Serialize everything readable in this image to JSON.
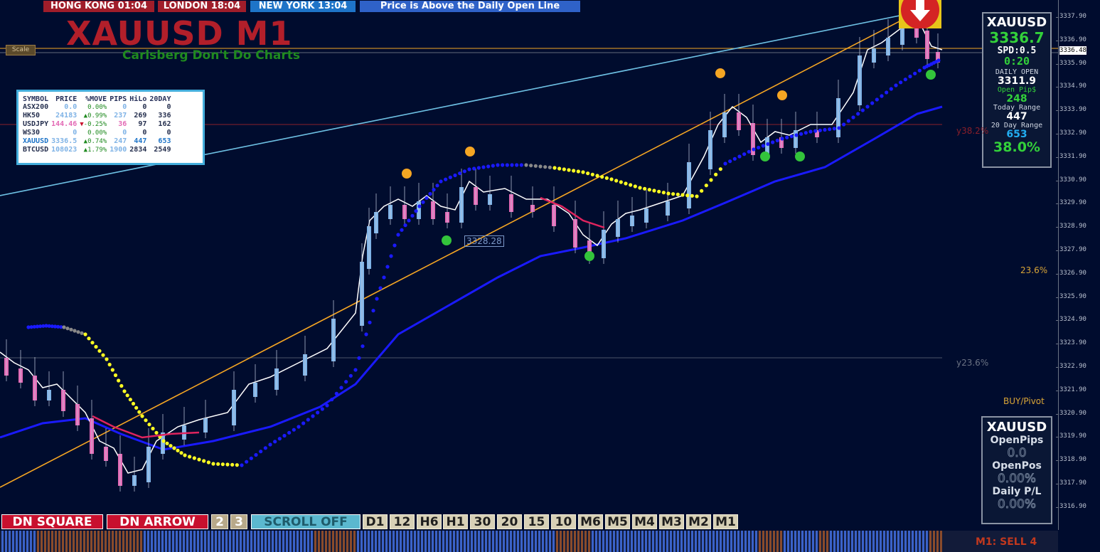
{
  "sessions": [
    {
      "label": "HONG KONG 01:04",
      "color": "#a01d2a"
    },
    {
      "label": "LONDON  18:04",
      "color": "#a01d2a"
    },
    {
      "label": "NEW YORK  13:04",
      "color": "#1e74c8"
    }
  ],
  "status_banner": "Price is Above the Daily Open Line",
  "chart_title": "XAUUSD M1",
  "chart_subtitle": "Carlsberg Don't Do Charts",
  "scale_button": "Scale",
  "price_axis": {
    "labels": [
      "3337.90",
      "3336.90",
      "3335.90",
      "3334.90",
      "3333.90",
      "3332.90",
      "3331.90",
      "3330.90",
      "3329.90",
      "3328.90",
      "3327.90",
      "3326.90",
      "3325.90",
      "3324.90",
      "3323.90",
      "3322.90",
      "3321.90",
      "3320.90",
      "3319.90",
      "3318.90",
      "3317.90",
      "3316.90"
    ],
    "current_price": "3336.48"
  },
  "watchlist": {
    "headers": [
      "SYMBOL",
      "PRICE",
      "%MOVE",
      "PIPS",
      "HiLo",
      "20DAY"
    ],
    "rows": [
      {
        "symbol": "ASX200",
        "price": "0.0",
        "arrow": "",
        "move": "0.00%",
        "pips": "0",
        "hilo": "0",
        "d20": "0",
        "color": "#7fb3e6"
      },
      {
        "symbol": "HK50",
        "price": "24183",
        "arrow": "▲",
        "move": "0.99%",
        "pips": "237",
        "hilo": "269",
        "d20": "336",
        "color": "#7fb3e6"
      },
      {
        "symbol": "USDJPY",
        "price": "144.46",
        "arrow": "▼",
        "move": "-0.25%",
        "pips": "36",
        "hilo": "97",
        "d20": "162",
        "color": "#e36ab5"
      },
      {
        "symbol": "WS30",
        "price": "0",
        "arrow": "",
        "move": "0.00%",
        "pips": "0",
        "hilo": "0",
        "d20": "0",
        "color": "#7fb3e6"
      },
      {
        "symbol": "XAUUSD",
        "price": "3336.5",
        "arrow": "▲",
        "move": "0.74%",
        "pips": "247",
        "hilo": "447",
        "d20": "653",
        "color": "#7fb3e6"
      },
      {
        "symbol": "BTCUSD",
        "price": "108023",
        "arrow": "▲",
        "move": "1.79%",
        "pips": "1900",
        "hilo": "2834",
        "d20": "2549",
        "color": "#7fb3e6"
      }
    ]
  },
  "info_panel": {
    "symbol": "XAUUSD",
    "price": "3336.7",
    "spread": "SPD:0.5",
    "timer": "0:20",
    "daily_open_label": "DAILY OPEN",
    "daily_open": "3311.9",
    "open_pips_label": "Open Pip$",
    "open_pips": "248",
    "today_range_label": "Today Range",
    "today_range": "447",
    "day20_label": "20 Day Range",
    "day20": "653",
    "percent": "38.0%"
  },
  "position_panel": {
    "symbol": "XAUUSD",
    "open_pips_label": "OpenPips",
    "open_pips": "0.0",
    "open_pos_label": "OpenPos",
    "open_pos": "0.00%",
    "daily_pl_label": "Daily P/L",
    "daily_pl": "0.00%"
  },
  "chart_labels": {
    "price_tag": "3328.28",
    "fib_38": "y38.2%",
    "fib_23_right": "23.6%",
    "fib_23": "y23.6%",
    "pivot": "BUY/Pivot"
  },
  "bottom_buttons": {
    "dn_square": "DN SQUARE",
    "dn_arrow": "DN ARROW",
    "b2": "2",
    "b3": "3",
    "scroll": "SCROLL OFF",
    "timeframes": [
      "D1",
      "12",
      "H6",
      "H1",
      "30",
      "20",
      "15",
      "10",
      "M6",
      "M5",
      "M4",
      "M3",
      "M2",
      "M1"
    ]
  },
  "signal_label": "M1: SELL 4",
  "colors": {
    "background": "#000c2e",
    "bull": "#7fb3e6",
    "bear": "#e36ab5",
    "trend": "#f5a623",
    "channel": "#6ec1e4",
    "ma": "#1a1aff"
  }
}
